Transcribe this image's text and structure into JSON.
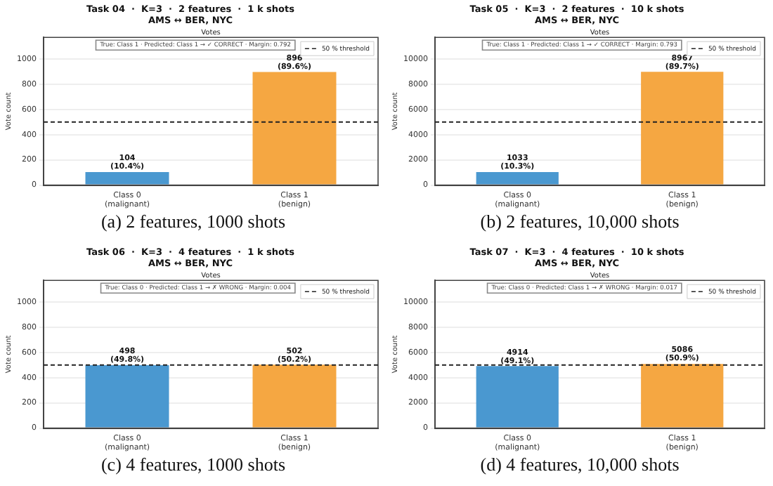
{
  "chart_data": [
    {
      "type": "bar",
      "title": "Task 04  ·  K=3  ·  2 features  ·  1 k shots",
      "subtitle": "AMS ↔ BER, NYC",
      "ylabel": "Vote count",
      "categories": [
        "Class 0\n(malignant)",
        "Class 1\n(benign)"
      ],
      "values": [
        104,
        896
      ],
      "colors": [
        "#4a98d0",
        "#f5a742"
      ],
      "value_labels": [
        "104\n(10.4%)",
        "896\n(89.6%)"
      ],
      "ylim": [
        0,
        1170
      ],
      "yticks": [
        0,
        200,
        400,
        600,
        800,
        1000
      ],
      "grid": "y",
      "legend": "top right",
      "ref_lines": [
        {
          "axis": "y",
          "value": 500,
          "label": "50 % threshold",
          "line_style": "dashed",
          "color": "#222222"
        }
      ],
      "annotations": [
        "Votes",
        "True: Class 1 · Predicted: Class 1 → ✓ CORRECT · Margin: 0.792",
        "(a) 2 features, 1000 shots"
      ]
    },
    {
      "type": "bar",
      "title": "Task 05  ·  K=3  ·  2 features  ·  10 k shots",
      "subtitle": "AMS ↔ BER, NYC",
      "ylabel": "Vote count",
      "categories": [
        "Class 0\n(malignant)",
        "Class 1\n(benign)"
      ],
      "values": [
        1033,
        8967
      ],
      "colors": [
        "#4a98d0",
        "#f5a742"
      ],
      "value_labels": [
        "1033\n(10.3%)",
        "8967\n(89.7%)"
      ],
      "ylim": [
        0,
        11700
      ],
      "yticks": [
        0,
        2000,
        4000,
        6000,
        8000,
        10000
      ],
      "grid": "y",
      "legend": "top right",
      "ref_lines": [
        {
          "axis": "y",
          "value": 5000,
          "label": "50 % threshold",
          "line_style": "dashed",
          "color": "#222222"
        }
      ],
      "annotations": [
        "Votes",
        "True: Class 1 · Predicted: Class 1 → ✓ CORRECT · Margin: 0.793",
        "(b) 2 features, 10,000 shots"
      ]
    },
    {
      "type": "bar",
      "title": "Task 06  ·  K=3  ·  4 features  ·  1 k shots",
      "subtitle": "AMS ↔ BER, NYC",
      "ylabel": "Vote count",
      "categories": [
        "Class 0\n(malignant)",
        "Class 1\n(benign)"
      ],
      "values": [
        498,
        502
      ],
      "colors": [
        "#4a98d0",
        "#f5a742"
      ],
      "value_labels": [
        "498\n(49.8%)",
        "502\n(50.2%)"
      ],
      "ylim": [
        0,
        1170
      ],
      "yticks": [
        0,
        200,
        400,
        600,
        800,
        1000
      ],
      "grid": "y",
      "legend": "top right",
      "ref_lines": [
        {
          "axis": "y",
          "value": 500,
          "label": "50 % threshold",
          "line_style": "dashed",
          "color": "#222222"
        }
      ],
      "annotations": [
        "Votes",
        "True: Class 0 · Predicted: Class 1 → ✗ WRONG · Margin: 0.004",
        "(c) 4 features, 1000 shots"
      ]
    },
    {
      "type": "bar",
      "title": "Task 07  ·  K=3  ·  4 features  ·  10 k shots",
      "subtitle": "AMS ↔ BER, NYC",
      "ylabel": "Vote count",
      "categories": [
        "Class 0\n(malignant)",
        "Class 1\n(benign)"
      ],
      "values": [
        4914,
        5086
      ],
      "colors": [
        "#4a98d0",
        "#f5a742"
      ],
      "value_labels": [
        "4914\n(49.1%)",
        "5086\n(50.9%)"
      ],
      "ylim": [
        0,
        11700
      ],
      "yticks": [
        0,
        2000,
        4000,
        6000,
        8000,
        10000
      ],
      "grid": "y",
      "legend": "top right",
      "ref_lines": [
        {
          "axis": "y",
          "value": 5000,
          "label": "50 % threshold",
          "line_style": "dashed",
          "color": "#222222"
        }
      ],
      "annotations": [
        "Votes",
        "True: Class 0 · Predicted: Class 1 → ✗ WRONG · Margin: 0.017",
        "(d) 4 features, 10,000 shots"
      ]
    }
  ]
}
